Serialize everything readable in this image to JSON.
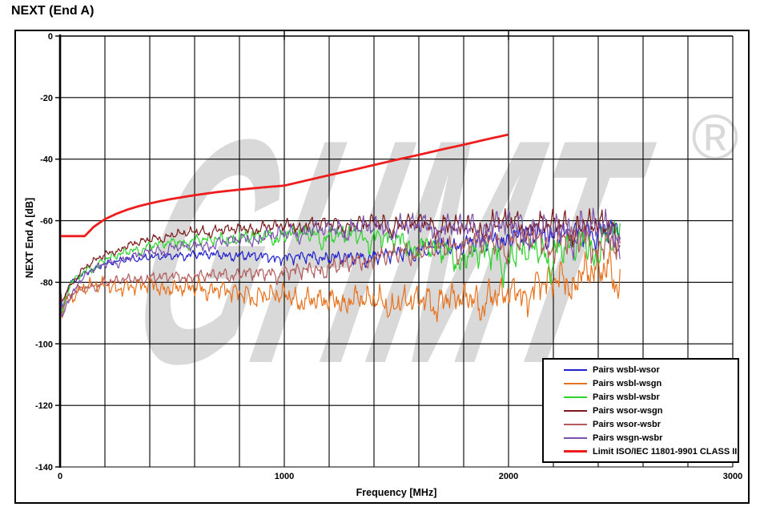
{
  "chart_data": {
    "type": "line",
    "title": "NEXT (End A)",
    "xlabel": "Frequency [MHz]",
    "ylabel": "NEXT End A [dB]",
    "xlim": [
      0,
      3000
    ],
    "ylim": [
      -140,
      0
    ],
    "x_ticks": [
      0,
      1000,
      2000,
      3000
    ],
    "y_ticks": [
      0,
      -20,
      -40,
      -60,
      -80,
      -100,
      -120,
      -140
    ],
    "x_grid_step": 200,
    "y_grid_step": 20,
    "x_cross_ticks": [
      1000,
      2000
    ],
    "grid_color": "#000000",
    "watermark": {
      "text": "GHMT",
      "reg": "®",
      "color": "#d9d9d9"
    },
    "series": [
      {
        "name": "Pairs wsbl-wsor",
        "color": "#2020cc",
        "width": 1.2,
        "noise": {
          "seed": 1,
          "a0": 0.8,
          "a1": 3.2,
          "dip": 3
        },
        "points": [
          [
            1,
            -83
          ],
          [
            10,
            -88
          ],
          [
            25,
            -84
          ],
          [
            50,
            -80
          ],
          [
            100,
            -77.5
          ],
          [
            150,
            -75.5
          ],
          [
            200,
            -74
          ],
          [
            300,
            -72.5
          ],
          [
            400,
            -71.8
          ],
          [
            500,
            -71.5
          ],
          [
            600,
            -70.8
          ],
          [
            700,
            -71
          ],
          [
            800,
            -71.3
          ],
          [
            900,
            -71.5
          ],
          [
            1000,
            -72
          ],
          [
            1100,
            -71.5
          ],
          [
            1200,
            -71.8
          ],
          [
            1300,
            -72
          ],
          [
            1400,
            -71.5
          ],
          [
            1500,
            -70.5
          ],
          [
            1600,
            -69.5
          ],
          [
            1700,
            -68.5
          ],
          [
            1800,
            -67.5
          ],
          [
            1900,
            -66.5
          ],
          [
            2000,
            -65.5
          ],
          [
            2100,
            -64.5
          ],
          [
            2200,
            -64
          ],
          [
            2300,
            -63.5
          ],
          [
            2400,
            -63
          ],
          [
            2500,
            -62.5
          ]
        ]
      },
      {
        "name": "Pairs wsbl-wsgn",
        "color": "#e8731f",
        "width": 1.2,
        "noise": {
          "seed": 2,
          "a0": 2.2,
          "a1": 3.5,
          "dip": 8
        },
        "points": [
          [
            1,
            -88
          ],
          [
            10,
            -90
          ],
          [
            25,
            -86
          ],
          [
            50,
            -84
          ],
          [
            100,
            -82
          ],
          [
            150,
            -81
          ],
          [
            200,
            -81
          ],
          [
            300,
            -81.5
          ],
          [
            400,
            -80.5
          ],
          [
            500,
            -82
          ],
          [
            600,
            -81.5
          ],
          [
            700,
            -82
          ],
          [
            800,
            -83.5
          ],
          [
            900,
            -84
          ],
          [
            1000,
            -84
          ],
          [
            1100,
            -85.5
          ],
          [
            1200,
            -86
          ],
          [
            1300,
            -85
          ],
          [
            1400,
            -85.5
          ],
          [
            1500,
            -86.5
          ],
          [
            1600,
            -85.5
          ],
          [
            1700,
            -85
          ],
          [
            1800,
            -85
          ],
          [
            1900,
            -84.5
          ],
          [
            2000,
            -83.5
          ],
          [
            2100,
            -81
          ],
          [
            2200,
            -79
          ],
          [
            2300,
            -77
          ],
          [
            2400,
            -76
          ],
          [
            2500,
            -74
          ]
        ]
      },
      {
        "name": "Pairs wsbl-wsbr",
        "color": "#2ed32e",
        "width": 1.2,
        "noise": {
          "seed": 3,
          "a0": 1.0,
          "a1": 4.5,
          "dip": 8
        },
        "points": [
          [
            1,
            -86
          ],
          [
            10,
            -91
          ],
          [
            25,
            -85
          ],
          [
            50,
            -80
          ],
          [
            100,
            -77
          ],
          [
            150,
            -74.5
          ],
          [
            200,
            -72.5
          ],
          [
            300,
            -70
          ],
          [
            400,
            -68
          ],
          [
            500,
            -67
          ],
          [
            600,
            -66.2
          ],
          [
            700,
            -66
          ],
          [
            800,
            -65.3
          ],
          [
            900,
            -65
          ],
          [
            1000,
            -64.3
          ],
          [
            1100,
            -64
          ],
          [
            1200,
            -64.8
          ],
          [
            1300,
            -64.2
          ],
          [
            1400,
            -65
          ],
          [
            1500,
            -66
          ],
          [
            1600,
            -67.5
          ],
          [
            1700,
            -69.5
          ],
          [
            1800,
            -71
          ],
          [
            1900,
            -70
          ],
          [
            2000,
            -71
          ],
          [
            2100,
            -69
          ],
          [
            2200,
            -69.5
          ],
          [
            2300,
            -67.5
          ],
          [
            2400,
            -66
          ],
          [
            2500,
            -64.5
          ]
        ]
      },
      {
        "name": "Pairs wsor-wsgn",
        "color": "#7a1a1a",
        "width": 1.2,
        "noise": {
          "seed": 4,
          "a0": 0.9,
          "a1": 3.2,
          "dip": 6
        },
        "points": [
          [
            1,
            -82
          ],
          [
            10,
            -87
          ],
          [
            25,
            -83
          ],
          [
            50,
            -80
          ],
          [
            100,
            -76
          ],
          [
            150,
            -73
          ],
          [
            200,
            -71
          ],
          [
            300,
            -68
          ],
          [
            400,
            -66
          ],
          [
            500,
            -64.5
          ],
          [
            600,
            -63.5
          ],
          [
            700,
            -63
          ],
          [
            800,
            -62.5
          ],
          [
            900,
            -62
          ],
          [
            1000,
            -61.5
          ],
          [
            1100,
            -61
          ],
          [
            1200,
            -60.8
          ],
          [
            1300,
            -61
          ],
          [
            1400,
            -60.3
          ],
          [
            1500,
            -61
          ],
          [
            1600,
            -60.3
          ],
          [
            1700,
            -61
          ],
          [
            1800,
            -61.8
          ],
          [
            1900,
            -61
          ],
          [
            2000,
            -60.3
          ],
          [
            2100,
            -61
          ],
          [
            2200,
            -60.8
          ],
          [
            2300,
            -61
          ],
          [
            2400,
            -61
          ],
          [
            2500,
            -62.5
          ]
        ]
      },
      {
        "name": "Pairs wsor-wsbr",
        "color": "#b25c5c",
        "width": 1.2,
        "noise": {
          "seed": 5,
          "a0": 1.3,
          "a1": 3.2,
          "dip": 6
        },
        "points": [
          [
            1,
            -84
          ],
          [
            10,
            -89
          ],
          [
            25,
            -86
          ],
          [
            50,
            -84
          ],
          [
            100,
            -82
          ],
          [
            150,
            -81
          ],
          [
            200,
            -80
          ],
          [
            300,
            -79
          ],
          [
            400,
            -78.5
          ],
          [
            500,
            -78
          ],
          [
            600,
            -78
          ],
          [
            700,
            -77.5
          ],
          [
            800,
            -77
          ],
          [
            900,
            -77
          ],
          [
            1000,
            -76.5
          ],
          [
            1100,
            -76
          ],
          [
            1200,
            -75
          ],
          [
            1300,
            -73.5
          ],
          [
            1400,
            -72
          ],
          [
            1500,
            -70.5
          ],
          [
            1600,
            -69.5
          ],
          [
            1700,
            -68.5
          ],
          [
            1800,
            -67.5
          ],
          [
            1900,
            -66.5
          ],
          [
            2000,
            -66.5
          ],
          [
            2100,
            -65.5
          ],
          [
            2200,
            -67
          ],
          [
            2300,
            -65
          ],
          [
            2400,
            -66.5
          ],
          [
            2500,
            -68
          ]
        ]
      },
      {
        "name": "Pairs wsgn-wsbr",
        "color": "#7b52ab",
        "width": 1.2,
        "noise": {
          "seed": 6,
          "a0": 1.0,
          "a1": 4.0,
          "dip": 8
        },
        "points": [
          [
            1,
            -85
          ],
          [
            10,
            -92
          ],
          [
            25,
            -88
          ],
          [
            50,
            -83
          ],
          [
            100,
            -78.5
          ],
          [
            150,
            -75.5
          ],
          [
            200,
            -74
          ],
          [
            300,
            -72
          ],
          [
            400,
            -70
          ],
          [
            500,
            -68.5
          ],
          [
            600,
            -68
          ],
          [
            700,
            -67
          ],
          [
            800,
            -66
          ],
          [
            900,
            -65
          ],
          [
            1000,
            -64
          ],
          [
            1100,
            -63
          ],
          [
            1200,
            -62.5
          ],
          [
            1300,
            -62
          ],
          [
            1400,
            -62
          ],
          [
            1500,
            -61.5
          ],
          [
            1600,
            -61
          ],
          [
            1700,
            -61.2
          ],
          [
            1800,
            -62
          ],
          [
            1900,
            -61.2
          ],
          [
            2000,
            -60.5
          ],
          [
            2100,
            -61.5
          ],
          [
            2200,
            -63
          ],
          [
            2300,
            -61.5
          ],
          [
            2400,
            -62
          ],
          [
            2500,
            -62.5
          ]
        ]
      }
    ],
    "limit": {
      "name": "Limit ISO/IEC 11801-9901  CLASS II",
      "color": "#ee1c1c",
      "width": 2.8,
      "points": [
        [
          1,
          -65
        ],
        [
          110,
          -65
        ],
        [
          150,
          -62
        ],
        [
          200,
          -59.5
        ],
        [
          250,
          -57.8
        ],
        [
          300,
          -56.4
        ],
        [
          350,
          -55.3
        ],
        [
          400,
          -54.4
        ],
        [
          450,
          -53.6
        ],
        [
          500,
          -52.9
        ],
        [
          600,
          -51.7
        ],
        [
          700,
          -50.7
        ],
        [
          800,
          -49.9
        ],
        [
          900,
          -49.2
        ],
        [
          1000,
          -48.6
        ],
        [
          1100,
          -46.9
        ],
        [
          1200,
          -45.2
        ],
        [
          1300,
          -43.6
        ],
        [
          1400,
          -41.9
        ],
        [
          1500,
          -40.2
        ],
        [
          1600,
          -38.6
        ],
        [
          1700,
          -36.9
        ],
        [
          1800,
          -35.3
        ],
        [
          1900,
          -33.6
        ],
        [
          2000,
          -32
        ]
      ]
    }
  }
}
